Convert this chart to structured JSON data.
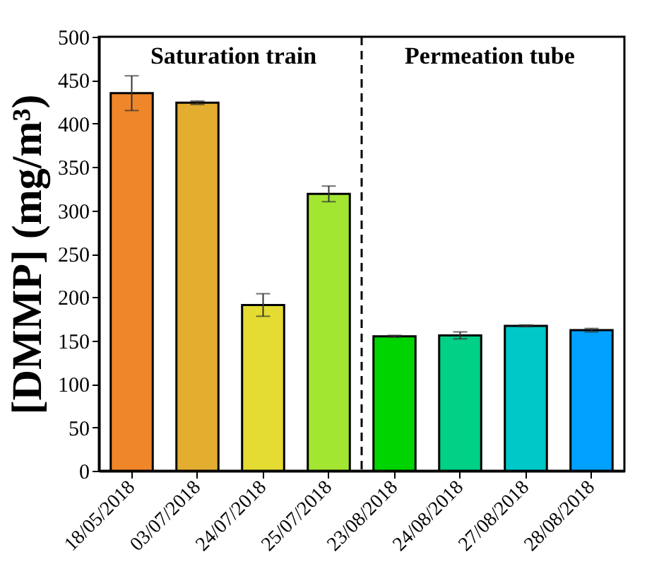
{
  "chart_data": {
    "type": "bar",
    "ylabel": "[DMMP] (mg/m³)",
    "categories": [
      "18/05/2018",
      "03/07/2018",
      "24/07/2018",
      "25/07/2018",
      "23/08/2018",
      "24/08/2018",
      "27/08/2018",
      "28/08/2018"
    ],
    "values": [
      435,
      424,
      191,
      319,
      155,
      156,
      167,
      162
    ],
    "errors": [
      20,
      2,
      13,
      9,
      1,
      4,
      1,
      2
    ],
    "colors": [
      "#f0862a",
      "#e3ad2f",
      "#e5dc33",
      "#a3e632",
      "#00d400",
      "#00d187",
      "#00c8c8",
      "#00a0ff"
    ],
    "ylim": [
      0,
      500
    ],
    "yticks": [
      0,
      50,
      100,
      150,
      200,
      250,
      300,
      350,
      400,
      450,
      500
    ],
    "grid": false,
    "annotations": [
      "Saturation train",
      "Permeation tube"
    ]
  }
}
